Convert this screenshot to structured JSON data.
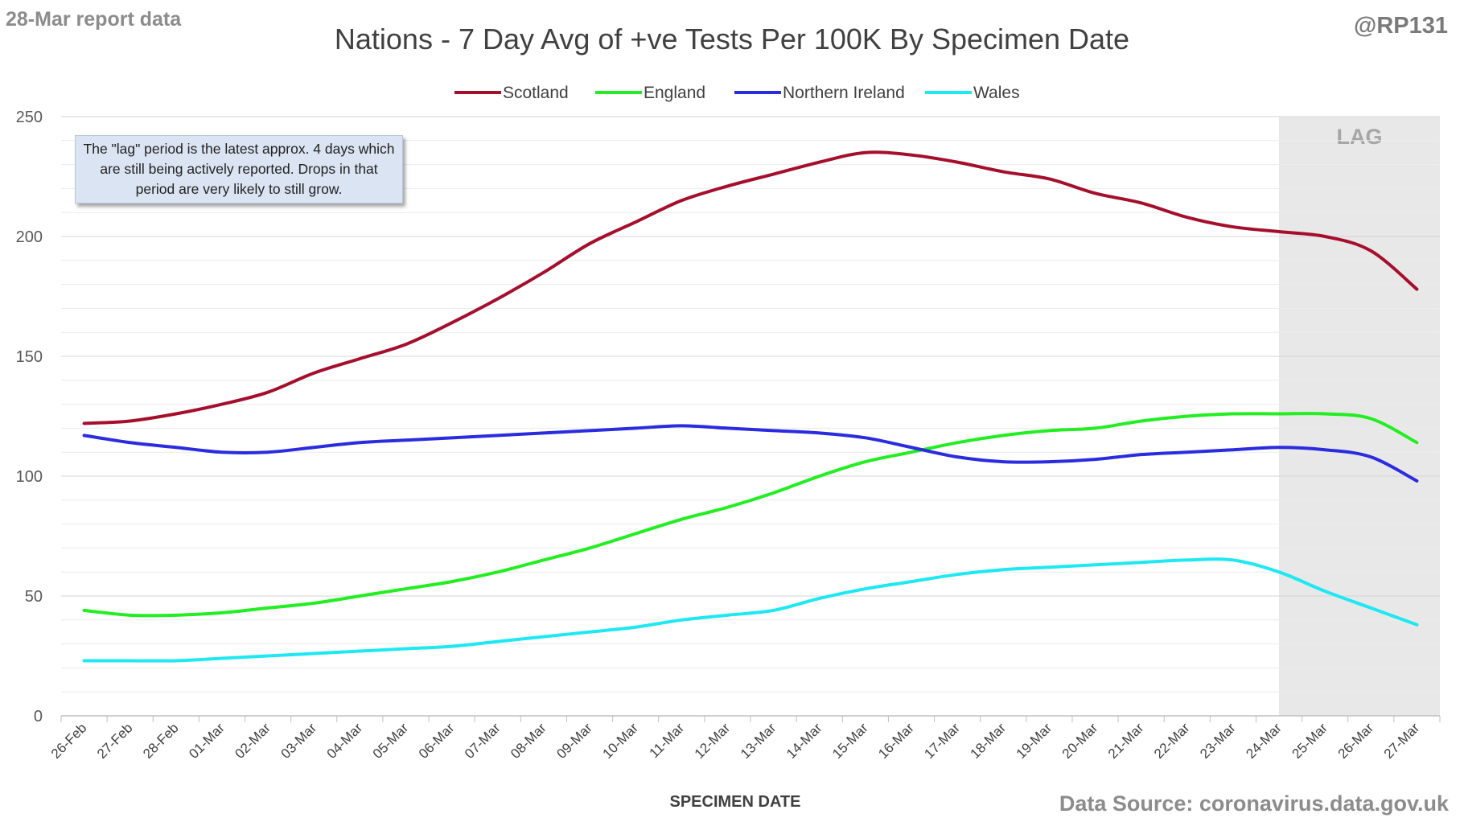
{
  "header": {
    "report_label": "28-Mar report data",
    "handle": "@RP131"
  },
  "footer": {
    "source": "Data Source: coronavirus.data.gov.uk"
  },
  "note": "The \"lag\" period is the latest approx. 4 days which are still being actively reported. Drops in that period are very likely to still grow.",
  "chart_data": {
    "type": "line",
    "title": "Nations - 7 Day Avg of +ve Tests Per 100K By Specimen Date",
    "xlabel": "SPECIMEN DATE",
    "ylabel": "",
    "ylim": [
      0,
      250
    ],
    "yticks": [
      0,
      50,
      100,
      150,
      200,
      250
    ],
    "grid": true,
    "legend_position": "top-center",
    "categories": [
      "26-Feb",
      "27-Feb",
      "28-Feb",
      "01-Mar",
      "02-Mar",
      "03-Mar",
      "04-Mar",
      "05-Mar",
      "06-Mar",
      "07-Mar",
      "08-Mar",
      "09-Mar",
      "10-Mar",
      "11-Mar",
      "12-Mar",
      "13-Mar",
      "14-Mar",
      "15-Mar",
      "16-Mar",
      "17-Mar",
      "18-Mar",
      "19-Mar",
      "20-Mar",
      "21-Mar",
      "22-Mar",
      "23-Mar",
      "24-Mar",
      "25-Mar",
      "26-Mar",
      "27-Mar"
    ],
    "lag_region": {
      "start": "24-Mar",
      "end": "27-Mar",
      "label": "LAG"
    },
    "series": [
      {
        "name": "Scotland",
        "color": "#a50f2d",
        "values": [
          122,
          123,
          126,
          130,
          135,
          143,
          149,
          155,
          164,
          174,
          185,
          197,
          206,
          215,
          221,
          226,
          231,
          235,
          234,
          231,
          227,
          224,
          218,
          214,
          208,
          204,
          202,
          200,
          194,
          178
        ]
      },
      {
        "name": "England",
        "color": "#22ee22",
        "values": [
          44,
          42,
          42,
          43,
          45,
          47,
          50,
          53,
          56,
          60,
          65,
          70,
          76,
          82,
          87,
          93,
          100,
          106,
          110,
          114,
          117,
          119,
          120,
          123,
          125,
          126,
          126,
          126,
          124,
          114
        ]
      },
      {
        "name": "Northern Ireland",
        "color": "#2b2bdf",
        "values": [
          117,
          114,
          112,
          110,
          110,
          112,
          114,
          115,
          116,
          117,
          118,
          119,
          120,
          121,
          120,
          119,
          118,
          116,
          112,
          108,
          106,
          106,
          107,
          109,
          110,
          111,
          112,
          111,
          108,
          98
        ]
      },
      {
        "name": "Wales",
        "color": "#1ee8f2",
        "values": [
          23,
          23,
          23,
          24,
          25,
          26,
          27,
          28,
          29,
          31,
          33,
          35,
          37,
          40,
          42,
          44,
          49,
          53,
          56,
          59,
          61,
          62,
          63,
          64,
          65,
          65,
          60,
          52,
          45,
          38
        ]
      }
    ]
  }
}
